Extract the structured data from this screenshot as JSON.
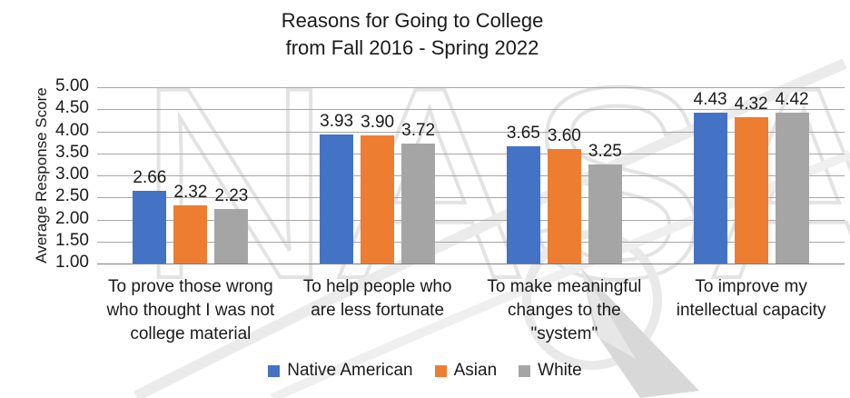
{
  "title": {
    "line1": "Reasons for Going to College",
    "line2": "from Fall 2016 - Spring 2022"
  },
  "watermark": {
    "text": "NASA"
  },
  "chart_data": {
    "type": "bar",
    "title": "Reasons for Going to College from Fall 2016 - Spring 2022",
    "ylabel": "Average Response Score",
    "xlabel": "",
    "ylim": [
      1.0,
      5.0
    ],
    "ytick_step": 0.5,
    "ytick_labels": [
      "5.00",
      "4.50",
      "4.00",
      "3.50",
      "3.00",
      "2.50",
      "2.00",
      "1.50",
      "1.00"
    ],
    "grid": true,
    "legend_position": "bottom",
    "categories": [
      [
        "To prove those wrong",
        "who thought I was not",
        "college material"
      ],
      [
        "To help people who",
        "are less fortunate"
      ],
      [
        "To make meaningful",
        "changes to the",
        "\"system\""
      ],
      [
        "To improve my",
        "intellectual capacity"
      ]
    ],
    "series": [
      {
        "name": "Native American",
        "color": "#4472C4",
        "values": [
          2.66,
          3.93,
          3.65,
          4.43
        ]
      },
      {
        "name": "Asian",
        "color": "#ED7D31",
        "values": [
          2.32,
          3.9,
          3.6,
          4.32
        ]
      },
      {
        "name": "White",
        "color": "#A5A5A5",
        "values": [
          2.23,
          3.72,
          3.25,
          4.42
        ]
      }
    ]
  }
}
